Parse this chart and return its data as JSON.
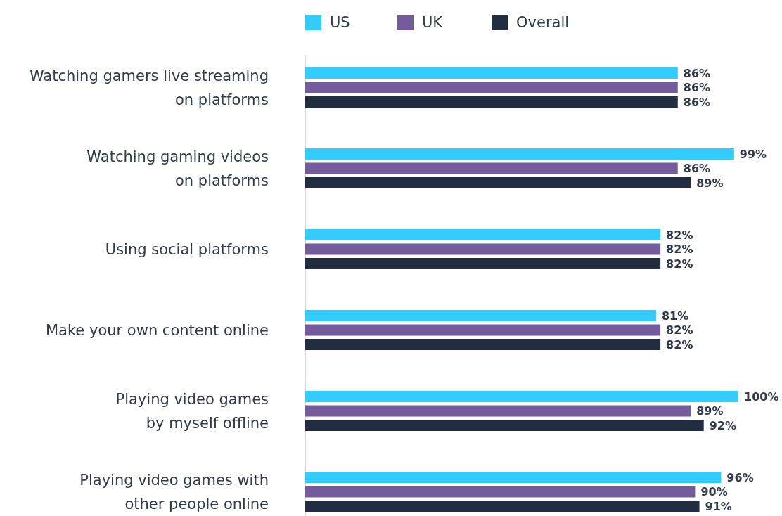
{
  "chart_data": {
    "type": "bar",
    "orientation": "horizontal",
    "legend": "top",
    "categories": [
      "Watching gamers live streaming\non platforms",
      "Watching gaming videos\non platforms",
      "Using social platforms",
      "Make your own content online",
      "Playing video games\nby myself offline",
      "Playing video games with\nother people online"
    ],
    "series": [
      {
        "name": "US",
        "color": "#33ccff",
        "values": [
          86,
          99,
          82,
          81,
          100,
          96
        ],
        "value_labels": [
          "86%",
          "99%",
          "82%",
          "81%",
          "100%",
          "96%"
        ]
      },
      {
        "name": "UK",
        "color": "#735b9c",
        "values": [
          86,
          86,
          82,
          82,
          89,
          90
        ],
        "value_labels": [
          "86%",
          "86%",
          "82%",
          "82%",
          "89%",
          "90%"
        ]
      },
      {
        "name": "Overall",
        "color": "#232d42",
        "values": [
          86,
          89,
          82,
          82,
          92,
          91
        ],
        "value_labels": [
          "86%",
          "89%",
          "82%",
          "82%",
          "92%",
          "91%"
        ]
      }
    ]
  }
}
